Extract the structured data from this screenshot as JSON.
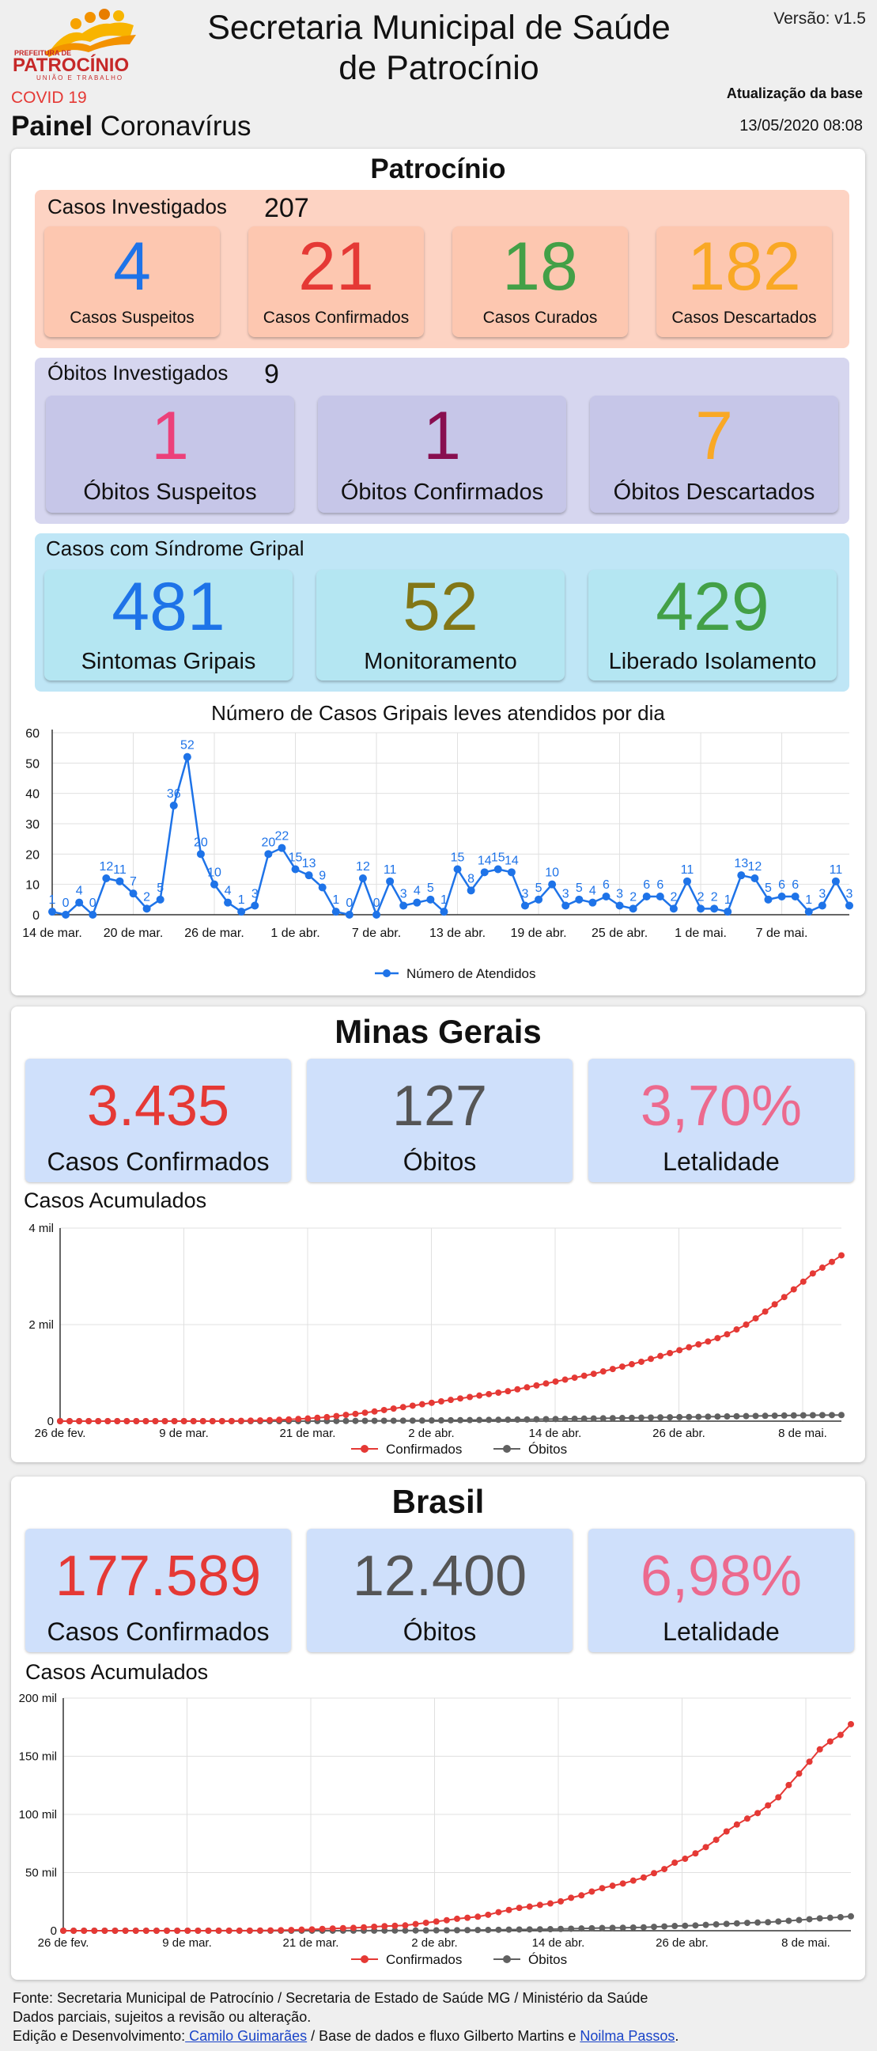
{
  "header": {
    "logo_line1": "PREFEITURA DE",
    "logo_line2": "PATROCÍNIO",
    "logo_line3": "UNIÃO E TRABALHO",
    "title_line1": "Secretaria Municipal de Saúde",
    "title_line2": "de Patrocínio",
    "version": "Versão: v1.5",
    "covid": "COVID 19",
    "painel_bold": "Painel",
    "painel_rest": " Coronavírus",
    "atualizacao_label": "Atualização da base",
    "atualizacao_date": "13/05/2020 08:08"
  },
  "patrocinio": {
    "title": "Patrocínio",
    "casos": {
      "label": "Casos Investigados",
      "count": "207",
      "cards": [
        {
          "value": "4",
          "label": "Casos Suspeitos",
          "color": "#1e73e8"
        },
        {
          "value": "21",
          "label": "Casos Confirmados",
          "color": "#e53935"
        },
        {
          "value": "18",
          "label": "Casos Curados",
          "color": "#43a047"
        },
        {
          "value": "182",
          "label": "Casos Descartados",
          "color": "#f9a825"
        }
      ]
    },
    "obitos": {
      "label": "Óbitos Investigados",
      "count": "9",
      "cards": [
        {
          "value": "1",
          "label": "Óbitos Suspeitos",
          "color": "#ec407a"
        },
        {
          "value": "1",
          "label": "Óbitos Confirmados",
          "color": "#880e4f"
        },
        {
          "value": "7",
          "label": "Óbitos Descartados",
          "color": "#f9a825"
        }
      ]
    },
    "gripal": {
      "label": "Casos com Síndrome Gripal",
      "cards": [
        {
          "value": "481",
          "label": "Sintomas Gripais",
          "color": "#1e73e8"
        },
        {
          "value": "52",
          "label": "Monitoramento",
          "color": "#827717"
        },
        {
          "value": "429",
          "label": "Liberado Isolamento",
          "color": "#43a047"
        }
      ]
    }
  },
  "minas": {
    "title": "Minas Gerais",
    "cards": [
      {
        "value": "3.435",
        "label": "Casos Confirmados",
        "color": "#e53935"
      },
      {
        "value": "127",
        "label": "Óbitos",
        "color": "#555555"
      },
      {
        "value": "3,70%",
        "label": "Letalidade",
        "color": "#ec6a8e"
      }
    ],
    "acumulados_label": "Casos Acumulados"
  },
  "brasil": {
    "title": "Brasil",
    "cards": [
      {
        "value": "177.589",
        "label": "Casos Confirmados",
        "color": "#e53935"
      },
      {
        "value": "12.400",
        "label": "Óbitos",
        "color": "#555555"
      },
      {
        "value": "6,98%",
        "label": "Letalidade",
        "color": "#ec6a8e"
      }
    ],
    "acumulados_label": "Casos Acumulados"
  },
  "footer": {
    "line1": "Fonte: Secretaria Municipal de Patrocínio / Secretaria de Estado de Saúde MG / Ministério da Saúde",
    "line2": "Dados parciais, sujeitos a revisão ou alteração.",
    "line3_pre": "Edição e Desenvolvimento:",
    "dev_link": " Camilo Guimarães",
    "line3_mid": " / Base de dados e fluxo Gilberto Martins e ",
    "data_link": "Noilma Passos",
    "line3_end": "."
  },
  "chart_data": [
    {
      "type": "line",
      "title": "Número de Casos Gripais leves atendidos por dia",
      "series": [
        {
          "name": "Número de Atendidos",
          "color": "#1e73e8",
          "values": [
            1,
            0,
            4,
            0,
            12,
            11,
            7,
            2,
            5,
            36,
            52,
            20,
            10,
            4,
            1,
            3,
            20,
            22,
            15,
            13,
            9,
            1,
            0,
            12,
            0,
            11,
            3,
            4,
            5,
            1,
            15,
            8,
            14,
            15,
            14,
            3,
            5,
            10,
            3,
            5,
            4,
            6,
            3,
            2,
            6,
            6,
            2,
            11,
            2,
            2,
            1,
            13,
            12,
            5,
            6,
            6,
            1,
            3,
            11,
            3
          ]
        }
      ],
      "x_start": "14 de mar.",
      "x_tick_labels": [
        "14 de mar.",
        "20 de mar.",
        "26 de mar.",
        "1 de abr.",
        "7 de abr.",
        "13 de abr.",
        "19 de abr.",
        "25 de abr.",
        "1 de mai.",
        "7 de mai."
      ],
      "y_ticks": [
        0,
        10,
        20,
        30,
        40,
        50,
        60
      ],
      "ylim": [
        0,
        60
      ],
      "legend": "bottom",
      "grid": true
    },
    {
      "type": "line",
      "title": "Casos Acumulados",
      "x_start": "26 de fev.",
      "x_tick_labels": [
        "26 de fev.",
        "9 de mar.",
        "21 de mar.",
        "2 de abr.",
        "14 de abr.",
        "26 de abr.",
        "8 de mai."
      ],
      "y_tick_labels": [
        "0",
        "2 mil",
        "4 mil"
      ],
      "ylim": [
        0,
        4000
      ],
      "series": [
        {
          "name": "Confirmados",
          "color": "#e53935",
          "values": [
            0,
            0,
            0,
            0,
            0,
            0,
            0,
            0,
            0,
            0,
            0,
            0,
            0,
            0,
            0,
            0,
            0,
            1,
            3,
            6,
            10,
            15,
            21,
            28,
            35,
            45,
            55,
            70,
            83,
            105,
            130,
            150,
            175,
            200,
            230,
            260,
            290,
            320,
            350,
            380,
            410,
            440,
            470,
            500,
            530,
            560,
            590,
            620,
            660,
            700,
            740,
            780,
            820,
            860,
            900,
            940,
            980,
            1030,
            1080,
            1130,
            1180,
            1230,
            1290,
            1350,
            1410,
            1470,
            1530,
            1590,
            1650,
            1720,
            1800,
            1900,
            2000,
            2130,
            2270,
            2420,
            2570,
            2730,
            2890,
            3060,
            3180,
            3300,
            3435
          ]
        },
        {
          "name": "Óbitos",
          "color": "#616161",
          "values": [
            0,
            0,
            0,
            0,
            0,
            0,
            0,
            0,
            0,
            0,
            0,
            0,
            0,
            0,
            0,
            0,
            0,
            0,
            0,
            0,
            0,
            0,
            0,
            0,
            0,
            1,
            1,
            2,
            2,
            3,
            4,
            5,
            6,
            7,
            8,
            9,
            10,
            11,
            12,
            14,
            16,
            18,
            20,
            22,
            24,
            26,
            28,
            30,
            32,
            35,
            38,
            41,
            44,
            47,
            50,
            53,
            56,
            59,
            62,
            65,
            68,
            71,
            74,
            77,
            80,
            83,
            86,
            89,
            92,
            95,
            98,
            101,
            104,
            107,
            110,
            113,
            116,
            119,
            121,
            123,
            125,
            126,
            127
          ]
        }
      ],
      "legend": "bottom",
      "grid": true
    },
    {
      "type": "line",
      "title": "Casos Acumulados",
      "x_start": "26 de fev.",
      "x_tick_labels": [
        "26 de fev.",
        "9 de mar.",
        "21 de mar.",
        "2 de abr.",
        "14 de abr.",
        "26 de abr.",
        "8 de mai."
      ],
      "y_tick_labels": [
        "0",
        "50 mil",
        "100 mil",
        "150 mil",
        "200 mil"
      ],
      "ylim": [
        0,
        200000
      ],
      "series": [
        {
          "name": "Confirmados",
          "color": "#e53935",
          "values": [
            1,
            1,
            1,
            1,
            2,
            2,
            2,
            3,
            3,
            4,
            8,
            13,
            19,
            25,
            34,
            52,
            77,
            98,
            121,
            200,
            291,
            428,
            621,
            904,
            1128,
            1546,
            1891,
            2201,
            2433,
            2915,
            3417,
            3904,
            4256,
            4579,
            5717,
            6836,
            7910,
            9056,
            10278,
            11130,
            12056,
            13717,
            15927,
            17857,
            19638,
            20727,
            22169,
            23430,
            25262,
            28320,
            30425,
            33682,
            36599,
            38654,
            40581,
            43079,
            45757,
            49492,
            52995,
            58509,
            61888,
            66501,
            71886,
            78162,
            85380,
            91299,
            96396,
            101147,
            107780,
            114715,
            125218,
            135106,
            145328,
            155939,
            162699,
            168331,
            177589
          ]
        },
        {
          "name": "Óbitos",
          "color": "#616161",
          "values": [
            0,
            0,
            0,
            0,
            0,
            0,
            0,
            0,
            0,
            0,
            0,
            0,
            0,
            0,
            0,
            0,
            0,
            0,
            0,
            0,
            1,
            4,
            6,
            11,
            18,
            25,
            34,
            46,
            59,
            77,
            92,
            114,
            136,
            159,
            201,
            241,
            299,
            359,
            432,
            486,
            553,
            667,
            800,
            941,
            1056,
            1124,
            1223,
            1328,
            1532,
            1736,
            1924,
            2141,
            2347,
            2462,
            2575,
            2741,
            2906,
            3313,
            3670,
            4045,
            4271,
            4543,
            5017,
            5466,
            5901,
            6329,
            6750,
            7025,
            7321,
            7921,
            8536,
            9146,
            9897,
            10627,
            11123,
            11653,
            12400
          ]
        }
      ],
      "legend": "bottom",
      "grid": true
    }
  ],
  "icons": {
    "logo": "prefeitura-logo-icon",
    "legend_marker": "legend-marker-icon"
  }
}
